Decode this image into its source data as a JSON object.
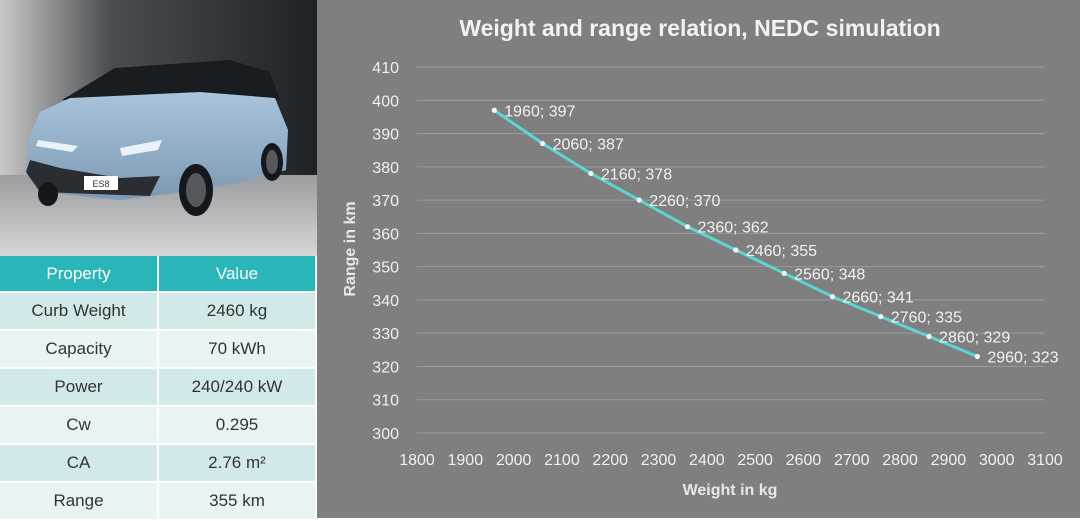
{
  "photo": {
    "badge": "ES8"
  },
  "table": {
    "headers": [
      "Property",
      "Value"
    ],
    "rows": [
      [
        "Curb Weight",
        "2460 kg"
      ],
      [
        "Capacity",
        "70 kWh"
      ],
      [
        "Power",
        "240/240 kW"
      ],
      [
        "Cw",
        "0.295"
      ],
      [
        "CA",
        "2.76 m²"
      ],
      [
        "Range",
        "355 km"
      ]
    ]
  },
  "colors": {
    "header_bg": "#2ab5b8",
    "row_odd": "#d2e9e9",
    "row_even": "#e8f3f3",
    "chart_bg": "#7f7f7f",
    "line": "#5ad6d3"
  },
  "chart_data": {
    "type": "line",
    "title": "Weight and range relation, NEDC simulation",
    "xlabel": "Weight in kg",
    "ylabel": "Range in km",
    "xlim": [
      1800,
      3100
    ],
    "ylim": [
      300,
      410
    ],
    "xticks": [
      1800,
      1900,
      2000,
      2100,
      2200,
      2300,
      2400,
      2500,
      2600,
      2700,
      2800,
      2900,
      3000,
      3100
    ],
    "yticks": [
      300,
      310,
      320,
      330,
      340,
      350,
      360,
      370,
      380,
      390,
      400,
      410
    ],
    "grid": true,
    "legend": false,
    "x": [
      1960,
      2060,
      2160,
      2260,
      2360,
      2460,
      2560,
      2660,
      2760,
      2860,
      2960
    ],
    "y": [
      397,
      387,
      378,
      370,
      362,
      355,
      348,
      341,
      335,
      329,
      323
    ],
    "labels": [
      "1960; 397",
      "2060; 387",
      "2160; 378",
      "2260; 370",
      "2360; 362",
      "2460; 355",
      "2560; 348",
      "2660; 341",
      "2760; 335",
      "2860; 329",
      "2960; 323"
    ]
  }
}
